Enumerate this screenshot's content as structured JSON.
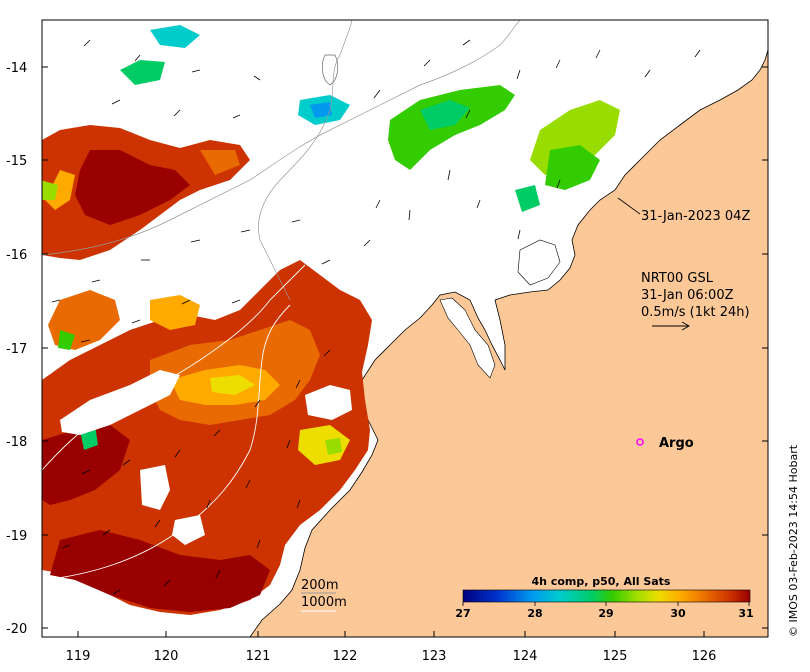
{
  "map": {
    "lon_ticks": [
      "119",
      "120",
      "121",
      "122",
      "123",
      "124",
      "125",
      "126"
    ],
    "lat_ticks": [
      "-14",
      "-15",
      "-16",
      "-17",
      "-18",
      "-19",
      "-20"
    ],
    "lon_range": [
      118.6,
      126.75
    ],
    "lat_range": [
      -20.05,
      -13.5
    ],
    "land_color": "#fcc898",
    "ocean_color": "#ffffff"
  },
  "annotations": {
    "timestamp_label": "31-Jan-2023 04Z",
    "current_model": "NRT00 GSL",
    "current_time": "31-Jan 06:00Z",
    "current_scale": "0.5m/s (1kt 24h)",
    "argo_label": "Argo",
    "depth_200": "200m",
    "depth_1000": "1000m",
    "credit": "© IMOS 03-Feb-2023 14:54 Hobart"
  },
  "colorbar": {
    "title": "4h comp, p50, All Sats",
    "labels": [
      "27",
      "28",
      "29",
      "30",
      "31"
    ],
    "range": [
      27,
      31
    ],
    "colors": [
      "#00007f",
      "#0033cc",
      "#0099ee",
      "#00cccc",
      "#00cc66",
      "#33cc00",
      "#99dd00",
      "#eedd00",
      "#ffaa00",
      "#e86a00",
      "#cc3300",
      "#990000"
    ]
  }
}
